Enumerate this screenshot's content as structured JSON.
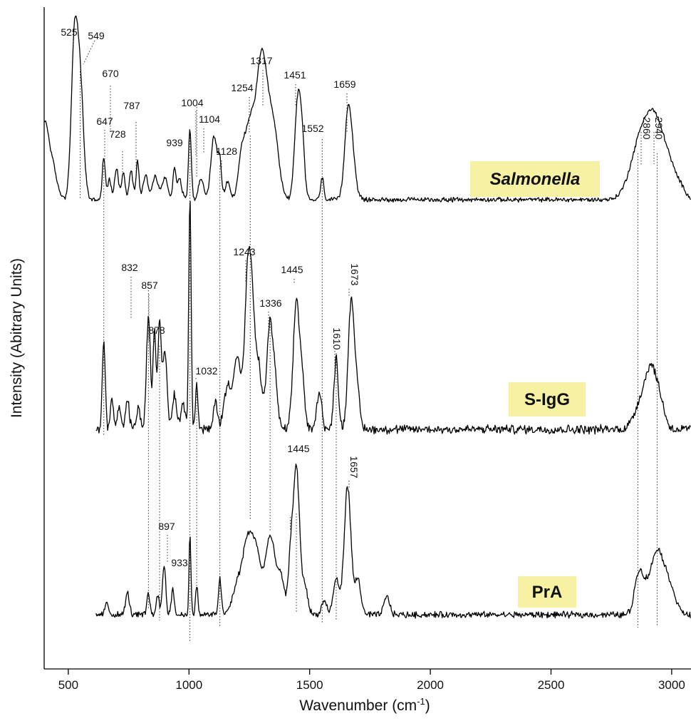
{
  "chart_data": {
    "type": "line",
    "title": "",
    "xlabel": "Wavenumber (cm",
    "xlabel_sup": "-1",
    "xlabel_close": ")",
    "ylabel": "Intensity (Abitrary Units)",
    "xlim": [
      400,
      3080
    ],
    "x_ticks": [
      "500",
      "1000",
      "1500",
      "2000",
      "2500",
      "3000"
    ],
    "grid": false,
    "label_box_color": "#f7f1a3",
    "line_color": "#000000",
    "series": [
      {
        "name": "Salmonella",
        "italic": true,
        "peaks": [
          {
            "x": 525,
            "label": "525"
          },
          {
            "x": 549,
            "label": "549"
          },
          {
            "x": 647,
            "label": "647"
          },
          {
            "x": 670,
            "label": "670"
          },
          {
            "x": 728,
            "label": "728"
          },
          {
            "x": 787,
            "label": "787"
          },
          {
            "x": 939,
            "label": "939"
          },
          {
            "x": 1004,
            "label": "1004"
          },
          {
            "x": 1104,
            "label": "1104"
          },
          {
            "x": 1128,
            "label": "1128"
          },
          {
            "x": 1254,
            "label": "1254"
          },
          {
            "x": 1317,
            "label": "1317"
          },
          {
            "x": 1451,
            "label": "1451"
          },
          {
            "x": 1552,
            "label": "1552"
          },
          {
            "x": 1659,
            "label": "1659"
          },
          {
            "x": 2860,
            "label": "2860"
          },
          {
            "x": 2940,
            "label": "2940"
          }
        ]
      },
      {
        "name": "S-IgG",
        "italic": false,
        "peaks": [
          {
            "x": 832,
            "label": "832"
          },
          {
            "x": 857,
            "label": "857"
          },
          {
            "x": 878,
            "label": "878"
          },
          {
            "x": 1032,
            "label": "1032"
          },
          {
            "x": 1243,
            "label": "1243"
          },
          {
            "x": 1336,
            "label": "1336"
          },
          {
            "x": 1445,
            "label": "1445"
          },
          {
            "x": 1610,
            "label": "1610"
          },
          {
            "x": 1673,
            "label": "1673"
          }
        ]
      },
      {
        "name": "PrA",
        "italic": false,
        "peaks": [
          {
            "x": 897,
            "label": "897"
          },
          {
            "x": 933,
            "label": "933"
          },
          {
            "x": 1445,
            "label": "1445"
          },
          {
            "x": 1657,
            "label": "1657"
          }
        ]
      }
    ]
  }
}
